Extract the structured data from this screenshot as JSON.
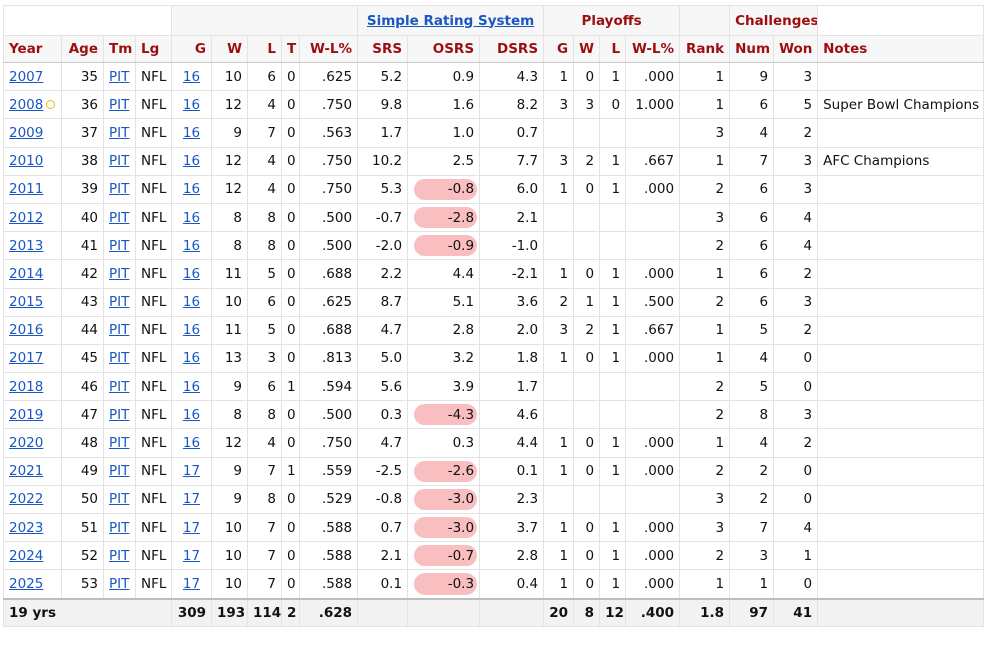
{
  "super_headers": {
    "srs_link": "Simple Rating System",
    "playoffs": "Playoffs",
    "challenges": "Challenges"
  },
  "columns": [
    "Year",
    "Age",
    "Tm",
    "Lg",
    "G",
    "W",
    "L",
    "T",
    "W-L%",
    "SRS",
    "OSRS",
    "DSRS",
    "G",
    "W",
    "L",
    "W-L%",
    "Rank",
    "Num",
    "Won",
    "Notes"
  ],
  "highlight_color": "#f06e73",
  "ring_icon_color": "#e8c300",
  "rows": [
    {
      "year": "2007",
      "age": "35",
      "tm": "PIT",
      "lg": "NFL",
      "g": "16",
      "w": "10",
      "l": "6",
      "t": "0",
      "wl": ".625",
      "srs": "5.2",
      "osrs": "0.9",
      "dsrs": "4.3",
      "pg": "1",
      "pw": "0",
      "pl": "1",
      "pwl": ".000",
      "rank": "1",
      "num": "9",
      "won": "3",
      "notes": "",
      "hl": false
    },
    {
      "year": "2008",
      "age": "36",
      "tm": "PIT",
      "lg": "NFL",
      "g": "16",
      "w": "12",
      "l": "4",
      "t": "0",
      "wl": ".750",
      "srs": "9.8",
      "osrs": "1.6",
      "dsrs": "8.2",
      "pg": "3",
      "pw": "3",
      "pl": "0",
      "pwl": "1.000",
      "rank": "1",
      "num": "6",
      "won": "5",
      "notes": "Super Bowl Champions",
      "hl": false,
      "ring": true
    },
    {
      "year": "2009",
      "age": "37",
      "tm": "PIT",
      "lg": "NFL",
      "g": "16",
      "w": "9",
      "l": "7",
      "t": "0",
      "wl": ".563",
      "srs": "1.7",
      "osrs": "1.0",
      "dsrs": "0.7",
      "pg": "",
      "pw": "",
      "pl": "",
      "pwl": "",
      "rank": "3",
      "num": "4",
      "won": "2",
      "notes": "",
      "hl": false
    },
    {
      "year": "2010",
      "age": "38",
      "tm": "PIT",
      "lg": "NFL",
      "g": "16",
      "w": "12",
      "l": "4",
      "t": "0",
      "wl": ".750",
      "srs": "10.2",
      "osrs": "2.5",
      "dsrs": "7.7",
      "pg": "3",
      "pw": "2",
      "pl": "1",
      "pwl": ".667",
      "rank": "1",
      "num": "7",
      "won": "3",
      "notes": "AFC Champions",
      "hl": false
    },
    {
      "year": "2011",
      "age": "39",
      "tm": "PIT",
      "lg": "NFL",
      "g": "16",
      "w": "12",
      "l": "4",
      "t": "0",
      "wl": ".750",
      "srs": "5.3",
      "osrs": "-0.8",
      "dsrs": "6.0",
      "pg": "1",
      "pw": "0",
      "pl": "1",
      "pwl": ".000",
      "rank": "2",
      "num": "6",
      "won": "3",
      "notes": "",
      "hl": true
    },
    {
      "year": "2012",
      "age": "40",
      "tm": "PIT",
      "lg": "NFL",
      "g": "16",
      "w": "8",
      "l": "8",
      "t": "0",
      "wl": ".500",
      "srs": "-0.7",
      "osrs": "-2.8",
      "dsrs": "2.1",
      "pg": "",
      "pw": "",
      "pl": "",
      "pwl": "",
      "rank": "3",
      "num": "6",
      "won": "4",
      "notes": "",
      "hl": true
    },
    {
      "year": "2013",
      "age": "41",
      "tm": "PIT",
      "lg": "NFL",
      "g": "16",
      "w": "8",
      "l": "8",
      "t": "0",
      "wl": ".500",
      "srs": "-2.0",
      "osrs": "-0.9",
      "dsrs": "-1.0",
      "pg": "",
      "pw": "",
      "pl": "",
      "pwl": "",
      "rank": "2",
      "num": "6",
      "won": "4",
      "notes": "",
      "hl": true
    },
    {
      "year": "2014",
      "age": "42",
      "tm": "PIT",
      "lg": "NFL",
      "g": "16",
      "w": "11",
      "l": "5",
      "t": "0",
      "wl": ".688",
      "srs": "2.2",
      "osrs": "4.4",
      "dsrs": "-2.1",
      "pg": "1",
      "pw": "0",
      "pl": "1",
      "pwl": ".000",
      "rank": "1",
      "num": "6",
      "won": "2",
      "notes": "",
      "hl": false
    },
    {
      "year": "2015",
      "age": "43",
      "tm": "PIT",
      "lg": "NFL",
      "g": "16",
      "w": "10",
      "l": "6",
      "t": "0",
      "wl": ".625",
      "srs": "8.7",
      "osrs": "5.1",
      "dsrs": "3.6",
      "pg": "2",
      "pw": "1",
      "pl": "1",
      "pwl": ".500",
      "rank": "2",
      "num": "6",
      "won": "3",
      "notes": "",
      "hl": false
    },
    {
      "year": "2016",
      "age": "44",
      "tm": "PIT",
      "lg": "NFL",
      "g": "16",
      "w": "11",
      "l": "5",
      "t": "0",
      "wl": ".688",
      "srs": "4.7",
      "osrs": "2.8",
      "dsrs": "2.0",
      "pg": "3",
      "pw": "2",
      "pl": "1",
      "pwl": ".667",
      "rank": "1",
      "num": "5",
      "won": "2",
      "notes": "",
      "hl": false
    },
    {
      "year": "2017",
      "age": "45",
      "tm": "PIT",
      "lg": "NFL",
      "g": "16",
      "w": "13",
      "l": "3",
      "t": "0",
      "wl": ".813",
      "srs": "5.0",
      "osrs": "3.2",
      "dsrs": "1.8",
      "pg": "1",
      "pw": "0",
      "pl": "1",
      "pwl": ".000",
      "rank": "1",
      "num": "4",
      "won": "0",
      "notes": "",
      "hl": false
    },
    {
      "year": "2018",
      "age": "46",
      "tm": "PIT",
      "lg": "NFL",
      "g": "16",
      "w": "9",
      "l": "6",
      "t": "1",
      "wl": ".594",
      "srs": "5.6",
      "osrs": "3.9",
      "dsrs": "1.7",
      "pg": "",
      "pw": "",
      "pl": "",
      "pwl": "",
      "rank": "2",
      "num": "5",
      "won": "0",
      "notes": "",
      "hl": false
    },
    {
      "year": "2019",
      "age": "47",
      "tm": "PIT",
      "lg": "NFL",
      "g": "16",
      "w": "8",
      "l": "8",
      "t": "0",
      "wl": ".500",
      "srs": "0.3",
      "osrs": "-4.3",
      "dsrs": "4.6",
      "pg": "",
      "pw": "",
      "pl": "",
      "pwl": "",
      "rank": "2",
      "num": "8",
      "won": "3",
      "notes": "",
      "hl": true
    },
    {
      "year": "2020",
      "age": "48",
      "tm": "PIT",
      "lg": "NFL",
      "g": "16",
      "w": "12",
      "l": "4",
      "t": "0",
      "wl": ".750",
      "srs": "4.7",
      "osrs": "0.3",
      "dsrs": "4.4",
      "pg": "1",
      "pw": "0",
      "pl": "1",
      "pwl": ".000",
      "rank": "1",
      "num": "4",
      "won": "2",
      "notes": "",
      "hl": false
    },
    {
      "year": "2021",
      "age": "49",
      "tm": "PIT",
      "lg": "NFL",
      "g": "17",
      "w": "9",
      "l": "7",
      "t": "1",
      "wl": ".559",
      "srs": "-2.5",
      "osrs": "-2.6",
      "dsrs": "0.1",
      "pg": "1",
      "pw": "0",
      "pl": "1",
      "pwl": ".000",
      "rank": "2",
      "num": "2",
      "won": "0",
      "notes": "",
      "hl": true
    },
    {
      "year": "2022",
      "age": "50",
      "tm": "PIT",
      "lg": "NFL",
      "g": "17",
      "w": "9",
      "l": "8",
      "t": "0",
      "wl": ".529",
      "srs": "-0.8",
      "osrs": "-3.0",
      "dsrs": "2.3",
      "pg": "",
      "pw": "",
      "pl": "",
      "pwl": "",
      "rank": "3",
      "num": "2",
      "won": "0",
      "notes": "",
      "hl": true
    },
    {
      "year": "2023",
      "age": "51",
      "tm": "PIT",
      "lg": "NFL",
      "g": "17",
      "w": "10",
      "l": "7",
      "t": "0",
      "wl": ".588",
      "srs": "0.7",
      "osrs": "-3.0",
      "dsrs": "3.7",
      "pg": "1",
      "pw": "0",
      "pl": "1",
      "pwl": ".000",
      "rank": "3",
      "num": "7",
      "won": "4",
      "notes": "",
      "hl": true
    },
    {
      "year": "2024",
      "age": "52",
      "tm": "PIT",
      "lg": "NFL",
      "g": "17",
      "w": "10",
      "l": "7",
      "t": "0",
      "wl": ".588",
      "srs": "2.1",
      "osrs": "-0.7",
      "dsrs": "2.8",
      "pg": "1",
      "pw": "0",
      "pl": "1",
      "pwl": ".000",
      "rank": "2",
      "num": "3",
      "won": "1",
      "notes": "",
      "hl": true
    },
    {
      "year": "2025",
      "age": "53",
      "tm": "PIT",
      "lg": "NFL",
      "g": "17",
      "w": "10",
      "l": "7",
      "t": "0",
      "wl": ".588",
      "srs": "0.1",
      "osrs": "-0.3",
      "dsrs": "0.4",
      "pg": "1",
      "pw": "0",
      "pl": "1",
      "pwl": ".000",
      "rank": "1",
      "num": "1",
      "won": "0",
      "notes": "",
      "hl": true
    }
  ],
  "totals": {
    "label": "19 yrs",
    "g": "309",
    "w": "193",
    "l": "114",
    "t": "2",
    "wl": ".628",
    "pg": "20",
    "pw": "8",
    "pl": "12",
    "pwl": ".400",
    "rank": "1.8",
    "num": "97",
    "won": "41"
  }
}
